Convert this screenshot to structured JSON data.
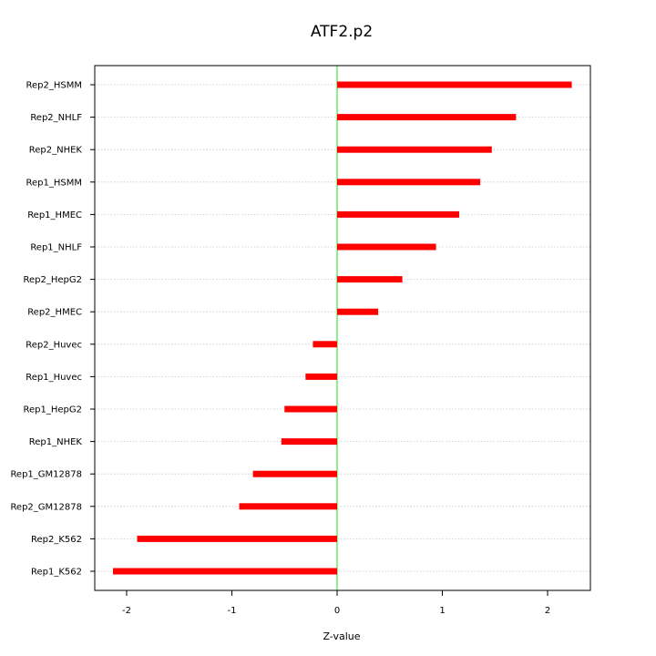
{
  "chart_data": {
    "type": "bar",
    "orientation": "horizontal",
    "title": "ATF2.p2",
    "xlabel": "Z-value",
    "ylabel": "",
    "xlim": [
      -2.3,
      2.4
    ],
    "xticks": [
      -2,
      -1,
      0,
      1,
      2
    ],
    "xtick_labels": [
      "-2",
      "-1",
      "0",
      "1",
      "2"
    ],
    "grid": "horizontal dotted",
    "reference_line": {
      "x": 0,
      "color": "#90ee90"
    },
    "bar_color": "#ff0000",
    "categories": [
      "Rep2_HSMM",
      "Rep2_NHLF",
      "Rep2_NHEK",
      "Rep1_HSMM",
      "Rep1_HMEC",
      "Rep1_NHLF",
      "Rep2_HepG2",
      "Rep2_HMEC",
      "Rep2_Huvec",
      "Rep1_Huvec",
      "Rep1_HepG2",
      "Rep1_NHEK",
      "Rep1_GM12878",
      "Rep2_GM12878",
      "Rep2_K562",
      "Rep1_K562"
    ],
    "values": [
      2.23,
      1.7,
      1.47,
      1.36,
      1.16,
      0.94,
      0.62,
      0.39,
      -0.23,
      -0.3,
      -0.5,
      -0.53,
      -0.8,
      -0.93,
      -1.9,
      -2.13
    ]
  }
}
